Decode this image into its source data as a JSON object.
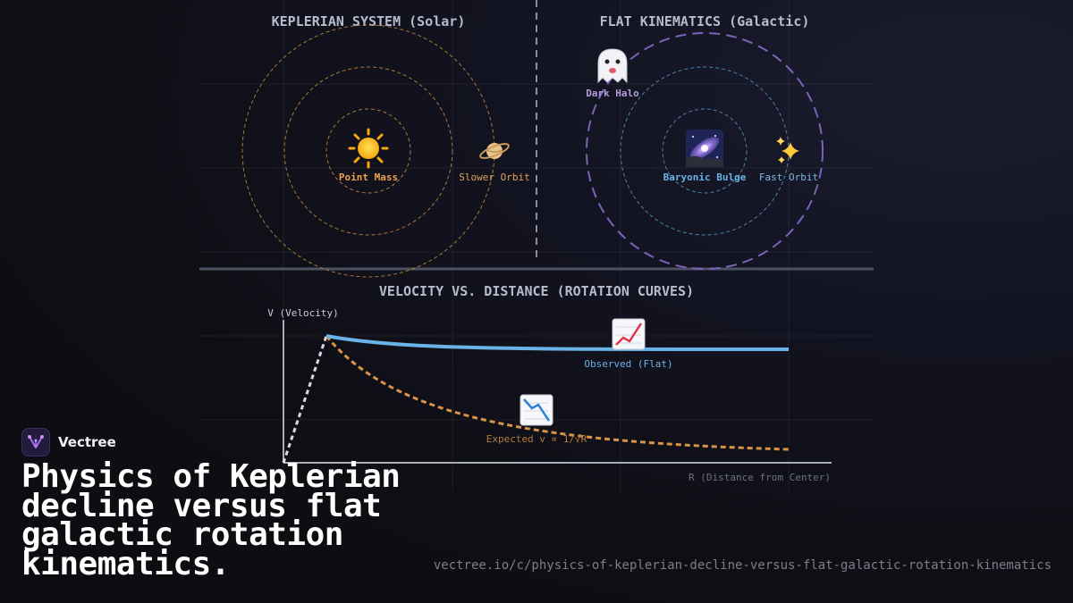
{
  "diagram": {
    "kepler_title": "KEPLERIAN SYSTEM (Solar)",
    "flat_title": "FLAT KINEMATICS (Galactic)",
    "point_mass_label": "Point Mass",
    "slower_orbit_label": "Slower Orbit",
    "dark_halo_label": "Dark Halo",
    "baryonic_bulge_label": "Baryonic Bulge",
    "fast_orbit_label": "Fast Orbit",
    "curves_title": "VELOCITY VS. DISTANCE (ROTATION CURVES)",
    "y_axis_label": "V (Velocity)",
    "x_axis_label": "R (Distance from Center)",
    "observed_label": "Observed (Flat)",
    "expected_label": "Expected v ∝ 1/√R",
    "icons": {
      "sun": "sun-icon",
      "planet": "ringed-planet-icon",
      "ghost": "ghost-icon",
      "galaxy": "milky-way-icon",
      "sparkles": "sparkles-icon",
      "chart_up": "chart-increasing-icon",
      "chart_down": "chart-decreasing-icon"
    }
  },
  "colors": {
    "kepler_orbit": "#c88a3a",
    "halo": "#7d62b8",
    "bulge": "#4f8fbd",
    "observed": "#6bb2e6",
    "expected": "#f0a24f",
    "dark_halo_text": "#b39ddb"
  },
  "brand": {
    "name": "Vectree"
  },
  "headline": "Physics of Keplerian decline versus flat galactic rotation kinematics.",
  "url": "vectree.io/c/physics-of-keplerian-decline-versus-flat-galactic-rotation-kinematics"
}
